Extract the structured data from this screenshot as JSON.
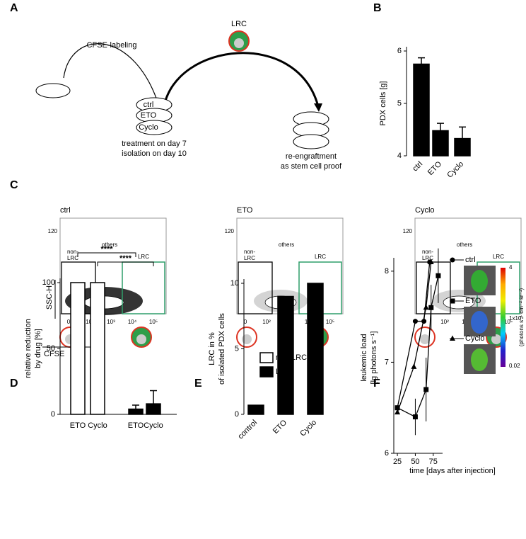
{
  "figure": {
    "panel_letters": [
      "A",
      "B",
      "C",
      "D",
      "E",
      "F"
    ],
    "A": {
      "labeling": "CFSE-labeling",
      "lrc": "LRC",
      "groups": [
        "ctrl",
        "ETO",
        "Cyclo"
      ],
      "treatment": [
        "treatment on day 7",
        "isolation on day 10"
      ],
      "reengraft": [
        "re-engraftment",
        "as stem cell proof"
      ]
    },
    "C": {
      "plots": [
        "ctrl",
        "ETO",
        "Cyclo"
      ],
      "y_tick": "120",
      "x_ticks": [
        "0",
        "10²",
        "10³",
        "10⁴",
        "10⁵"
      ],
      "others": "others",
      "non_lrc": [
        "non-",
        "LRC"
      ],
      "lrc": "LRC",
      "y_axis": "SSC-H",
      "x_axis": "CFSE"
    },
    "F": {
      "colorbar": [
        "4",
        "1x10⁶",
        "0.02"
      ],
      "colorbar_unit": "(photons s⁻¹ cm⁻² sr⁻¹)"
    }
  },
  "chart_data": [
    {
      "type": "bar",
      "ylabel": [
        "PDX cells [g]"
      ],
      "categories": [
        "ctrl",
        "ETO",
        "Cyclo"
      ],
      "values": [
        5.75,
        4.48,
        4.33
      ],
      "errors": [
        0.12,
        0.14,
        0.22
      ],
      "color": "#000000",
      "ylim": [
        4,
        6
      ],
      "yticks": [
        4,
        5,
        6
      ]
    },
    {
      "type": "bar",
      "ylabel": [
        "relative reduction",
        "by drug [%]"
      ],
      "categories": [
        "ETO",
        "Cyclo",
        "ETO",
        "Cyclo"
      ],
      "series": [
        {
          "name": "non-LRC",
          "color": "#ffffff",
          "values": [
            100,
            100,
            null,
            null
          ],
          "errors": [
            null,
            null,
            null,
            null
          ]
        },
        {
          "name": "LRC",
          "color": "#000000",
          "values": [
            null,
            null,
            4,
            8
          ],
          "errors": [
            null,
            null,
            3,
            10
          ]
        }
      ],
      "ylim": [
        0,
        100
      ],
      "yticks": [
        0,
        50,
        100
      ],
      "legend": "right",
      "annotations": [
        "****",
        "****"
      ]
    },
    {
      "type": "bar",
      "ylabel": [
        "LRC in %",
        "of isolated PDX cells"
      ],
      "categories": [
        "control",
        "ETO",
        "Cyclo"
      ],
      "values": [
        0.7,
        9,
        10
      ],
      "color": "#000000",
      "ylim": [
        0,
        10
      ],
      "yticks": [
        0,
        5,
        10
      ]
    },
    {
      "type": "line",
      "ylabel": [
        "leukemic load",
        "[lg photons s⁻¹]"
      ],
      "xlabel": "time [days after injection]",
      "series": [
        {
          "name": "ctrl",
          "marker": "circle",
          "color": "#000000",
          "x": [
            25,
            50,
            62,
            70
          ],
          "values": [
            6.5,
            7.45,
            7.45,
            8.1
          ]
        },
        {
          "name": "ETO",
          "marker": "square",
          "color": "#000000",
          "x": [
            25,
            50,
            65,
            72,
            82
          ],
          "values": [
            6.5,
            6.4,
            6.7,
            7.6,
            7.95
          ],
          "errors": [
            0,
            0.2,
            0.35,
            0.25,
            0.3
          ]
        },
        {
          "name": "Cyclo",
          "marker": "triangle",
          "color": "#000000",
          "x": [
            25,
            48,
            65,
            72
          ],
          "values": [
            6.45,
            6.95,
            7.6,
            8.1
          ]
        }
      ],
      "xlim": [
        20,
        88
      ],
      "ylim": [
        6,
        8.1
      ],
      "xticks": [
        25,
        50,
        75
      ],
      "yticks": [
        6,
        7,
        8
      ]
    }
  ]
}
